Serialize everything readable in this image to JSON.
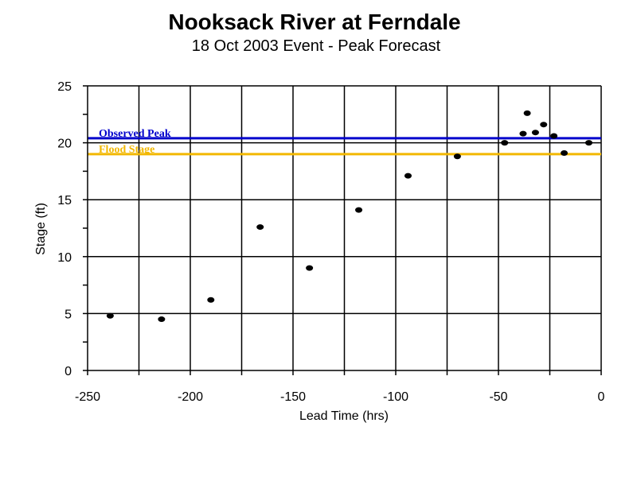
{
  "chart_data": {
    "type": "scatter",
    "title": "Nooksack River at Ferndale",
    "subtitle": "18 Oct 2003 Event - Peak Forecast",
    "xlabel": "Lead Time (hrs)",
    "ylabel": "Stage (ft)",
    "xlim": [
      -250,
      0
    ],
    "ylim": [
      0,
      25
    ],
    "x_ticks": [
      "-250",
      "-200",
      "-150",
      "-100",
      "-50",
      "0"
    ],
    "y_ticks": [
      "0",
      "5",
      "10",
      "15",
      "20",
      "25"
    ],
    "grid": true,
    "points": [
      {
        "x": -239,
        "y": 4.8
      },
      {
        "x": -214,
        "y": 4.5
      },
      {
        "x": -190,
        "y": 6.2
      },
      {
        "x": -166,
        "y": 12.6
      },
      {
        "x": -142,
        "y": 9.0
      },
      {
        "x": -118,
        "y": 14.1
      },
      {
        "x": -94,
        "y": 17.1
      },
      {
        "x": -70,
        "y": 18.8
      },
      {
        "x": -47,
        "y": 20.0
      },
      {
        "x": -38,
        "y": 20.8
      },
      {
        "x": -36,
        "y": 22.6
      },
      {
        "x": -32,
        "y": 20.9
      },
      {
        "x": -28,
        "y": 21.6
      },
      {
        "x": -23,
        "y": 20.6
      },
      {
        "x": -18,
        "y": 19.1
      },
      {
        "x": -6,
        "y": 20.0
      }
    ],
    "reference_lines": [
      {
        "name": "Observed Peak",
        "y": 20.4,
        "color": "#0000cc"
      },
      {
        "name": "Flood Stage",
        "y": 19.0,
        "color": "#f2b800"
      }
    ],
    "point_color": "#000000"
  }
}
